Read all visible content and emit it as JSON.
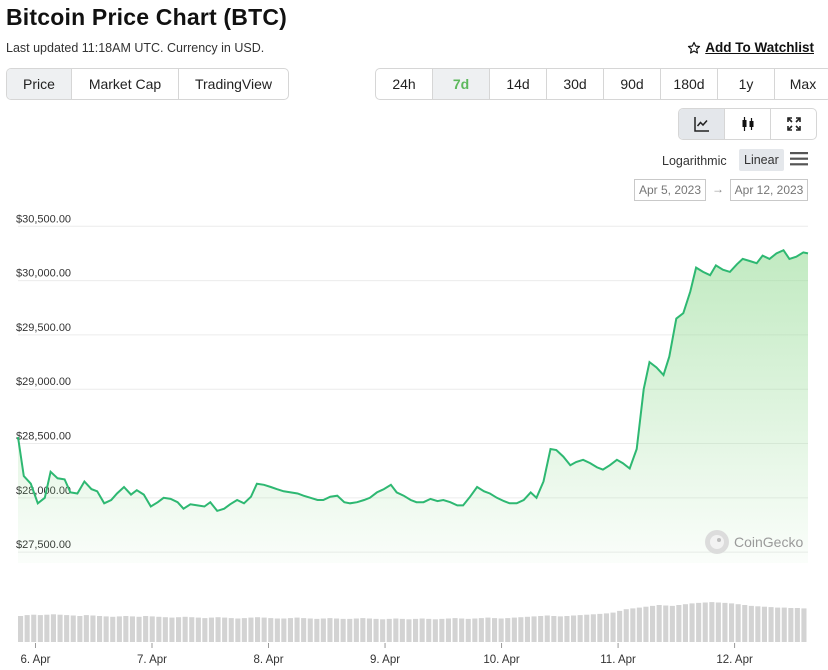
{
  "header": {
    "title": "Bitcoin Price Chart (BTC)",
    "updated": "Last updated 11:18AM UTC. Currency in USD.",
    "watchlist_label": "Add To Watchlist"
  },
  "tabs": [
    {
      "label": "Price",
      "active": true
    },
    {
      "label": "Market Cap",
      "active": false
    },
    {
      "label": "TradingView",
      "active": false
    }
  ],
  "ranges": [
    {
      "label": "24h",
      "active": false
    },
    {
      "label": "7d",
      "active": true
    },
    {
      "label": "14d",
      "active": false
    },
    {
      "label": "30d",
      "active": false
    },
    {
      "label": "90d",
      "active": false
    },
    {
      "label": "180d",
      "active": false
    },
    {
      "label": "1y",
      "active": false
    },
    {
      "label": "Max",
      "active": false
    }
  ],
  "tools": [
    {
      "icon": "line-chart-icon",
      "active": true
    },
    {
      "icon": "candlestick-icon",
      "active": false
    },
    {
      "icon": "expand-icon",
      "active": false
    }
  ],
  "scale": {
    "log_label": "Logarithmic",
    "linear_label": "Linear",
    "selected": "Linear"
  },
  "date_range": {
    "from": "Apr 5, 2023",
    "to": "Apr 12, 2023"
  },
  "watermark": "CoinGecko",
  "colors": {
    "line": "#2eb872",
    "fill": "#8fd98f",
    "volume": "#d3d3d3",
    "accent": "#5cb85c"
  },
  "chart_data": {
    "type": "area",
    "ylim": [
      27400,
      30650
    ],
    "yticks": [
      27500,
      28000,
      28500,
      29000,
      29500,
      30000,
      30500
    ],
    "ytick_labels": [
      "$27,500.00",
      "$28,000.00",
      "$28,500.00",
      "$29,000.00",
      "$29,500.00",
      "$30,000.00",
      "$30,500.00"
    ],
    "xlim": [
      5.85,
      12.63
    ],
    "xticks": [
      6,
      7,
      8,
      9,
      10,
      11,
      12
    ],
    "xtick_labels": [
      "6. Apr",
      "7. Apr",
      "8. Apr",
      "9. Apr",
      "10. Apr",
      "11. Apr",
      "12. Apr"
    ],
    "x": [
      5.85,
      5.9,
      5.96,
      6.02,
      6.08,
      6.13,
      6.19,
      6.25,
      6.3,
      6.36,
      6.42,
      6.48,
      6.53,
      6.59,
      6.65,
      6.7,
      6.76,
      6.82,
      6.87,
      6.93,
      6.99,
      7.05,
      7.1,
      7.16,
      7.22,
      7.27,
      7.33,
      7.39,
      7.45,
      7.5,
      7.56,
      7.62,
      7.67,
      7.73,
      7.79,
      7.85,
      7.9,
      7.96,
      8.02,
      8.07,
      8.13,
      8.19,
      8.25,
      8.3,
      8.36,
      8.42,
      8.47,
      8.53,
      8.59,
      8.65,
      8.7,
      8.76,
      8.82,
      8.87,
      8.93,
      8.99,
      9.05,
      9.1,
      9.16,
      9.22,
      9.27,
      9.33,
      9.39,
      9.45,
      9.5,
      9.56,
      9.62,
      9.67,
      9.73,
      9.79,
      9.85,
      9.9,
      9.96,
      10.02,
      10.07,
      10.13,
      10.19,
      10.25,
      10.3,
      10.36,
      10.42,
      10.47,
      10.53,
      10.59,
      10.64,
      10.7,
      10.76,
      10.82,
      10.87,
      10.93,
      10.99,
      11.04,
      11.1,
      11.16,
      11.22,
      11.27,
      11.33,
      11.39,
      11.44,
      11.5,
      11.56,
      11.62,
      11.67,
      11.73,
      11.79,
      11.84,
      11.9,
      11.96,
      12.02,
      12.07,
      12.13,
      12.19,
      12.24,
      12.3,
      12.36,
      12.42,
      12.47,
      12.53,
      12.59,
      12.63
    ],
    "y": [
      28560,
      28200,
      28130,
      27950,
      28000,
      28240,
      28180,
      28170,
      28050,
      28040,
      28150,
      28080,
      28060,
      27950,
      27980,
      28040,
      28100,
      28030,
      28070,
      28030,
      27920,
      27960,
      28000,
      27990,
      27960,
      27900,
      27940,
      27930,
      27920,
      27960,
      27880,
      27900,
      27940,
      27980,
      27950,
      28010,
      28130,
      28120,
      28100,
      28080,
      28060,
      28050,
      28040,
      28020,
      28000,
      27980,
      27980,
      28010,
      28020,
      27960,
      27950,
      27960,
      27980,
      28000,
      28050,
      28080,
      28120,
      28050,
      28020,
      27980,
      27960,
      27960,
      27990,
      27970,
      27980,
      27960,
      27930,
      27930,
      28010,
      28100,
      28060,
      28040,
      28000,
      27970,
      27950,
      27950,
      27980,
      28050,
      28000,
      28150,
      28450,
      28440,
      28380,
      28300,
      28330,
      28350,
      28320,
      28280,
      28260,
      28300,
      28350,
      28320,
      28270,
      28450,
      29000,
      29250,
      29200,
      29130,
      29300,
      29650,
      29700,
      29900,
      30120,
      30080,
      30050,
      30140,
      30100,
      30080,
      30150,
      30200,
      30180,
      30160,
      30230,
      30200,
      30250,
      30280,
      30200,
      30220,
      30260,
      30250
    ],
    "volume": [
      0.62,
      0.64,
      0.65,
      0.64,
      0.65,
      0.66,
      0.65,
      0.64,
      0.63,
      0.62,
      0.64,
      0.63,
      0.62,
      0.61,
      0.6,
      0.61,
      0.62,
      0.61,
      0.6,
      0.62,
      0.61,
      0.6,
      0.59,
      0.58,
      0.59,
      0.6,
      0.59,
      0.58,
      0.57,
      0.58,
      0.59,
      0.58,
      0.57,
      0.56,
      0.57,
      0.58,
      0.59,
      0.58,
      0.57,
      0.56,
      0.56,
      0.57,
      0.58,
      0.57,
      0.56,
      0.55,
      0.56,
      0.57,
      0.56,
      0.55,
      0.55,
      0.56,
      0.57,
      0.56,
      0.55,
      0.54,
      0.55,
      0.56,
      0.55,
      0.54,
      0.55,
      0.56,
      0.55,
      0.54,
      0.55,
      0.56,
      0.57,
      0.56,
      0.55,
      0.56,
      0.57,
      0.58,
      0.57,
      0.56,
      0.57,
      0.58,
      0.59,
      0.6,
      0.61,
      0.62,
      0.63,
      0.62,
      0.61,
      0.62,
      0.63,
      0.64,
      0.65,
      0.66,
      0.67,
      0.68,
      0.7,
      0.74,
      0.78,
      0.8,
      0.82,
      0.84,
      0.86,
      0.88,
      0.87,
      0.86,
      0.88,
      0.9,
      0.92,
      0.93,
      0.94,
      0.95,
      0.94,
      0.93,
      0.92,
      0.9,
      0.88,
      0.86,
      0.85,
      0.84,
      0.83,
      0.82,
      0.82,
      0.81,
      0.81,
      0.8
    ]
  }
}
